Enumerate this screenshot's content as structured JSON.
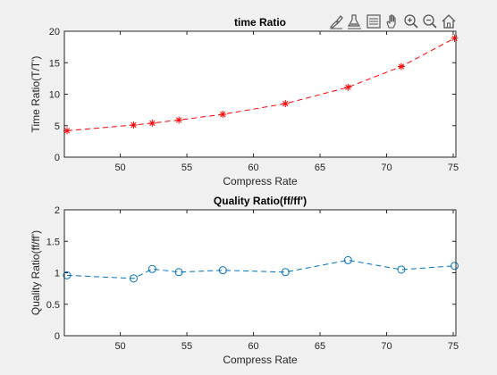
{
  "figure": {
    "background": "#f0f0f0",
    "axes_background": "#ffffff",
    "toolbar": [
      {
        "name": "brush-icon"
      },
      {
        "name": "data-tips-icon"
      },
      {
        "name": "insert-legend-icon"
      },
      {
        "name": "pan-hand-icon"
      },
      {
        "name": "zoom-in-icon"
      },
      {
        "name": "zoom-out-icon"
      },
      {
        "name": "home-icon"
      }
    ]
  },
  "chart_data": [
    {
      "type": "line",
      "title": "time Ratio",
      "xlabel": "Compress Rate",
      "ylabel": "Time Ratio(T/T')",
      "xlim": [
        45.8,
        75.2
      ],
      "ylim": [
        0,
        20
      ],
      "xticks": [
        50,
        55,
        60,
        65,
        70,
        75
      ],
      "yticks": [
        0,
        5,
        10,
        15,
        20
      ],
      "grid": false,
      "series": [
        {
          "color": "#ff0000",
          "line_style": "dashed",
          "marker": "asterisk",
          "x": [
            46.0,
            51.0,
            52.4,
            54.4,
            57.7,
            62.4,
            67.1,
            71.1,
            75.1
          ],
          "y": [
            4.2,
            5.1,
            5.4,
            5.9,
            6.8,
            8.5,
            11.1,
            14.4,
            18.9
          ]
        }
      ]
    },
    {
      "type": "line",
      "title": "Quality Ratio(ff/ff')",
      "xlabel": "Compress Rate",
      "ylabel": "Quality Ratio(ff/ff')",
      "xlim": [
        45.8,
        75.2
      ],
      "ylim": [
        0,
        2
      ],
      "xticks": [
        50,
        55,
        60,
        65,
        70,
        75
      ],
      "yticks": [
        0,
        0.5,
        1,
        1.5,
        2
      ],
      "grid": false,
      "series": [
        {
          "color": "#0072bd",
          "line_style": "dashed",
          "marker": "circle",
          "x": [
            46.0,
            51.0,
            52.4,
            54.4,
            57.7,
            62.4,
            67.1,
            71.1,
            75.1
          ],
          "y": [
            0.96,
            0.91,
            1.06,
            1.01,
            1.04,
            1.01,
            1.2,
            1.05,
            1.11
          ]
        }
      ]
    }
  ]
}
